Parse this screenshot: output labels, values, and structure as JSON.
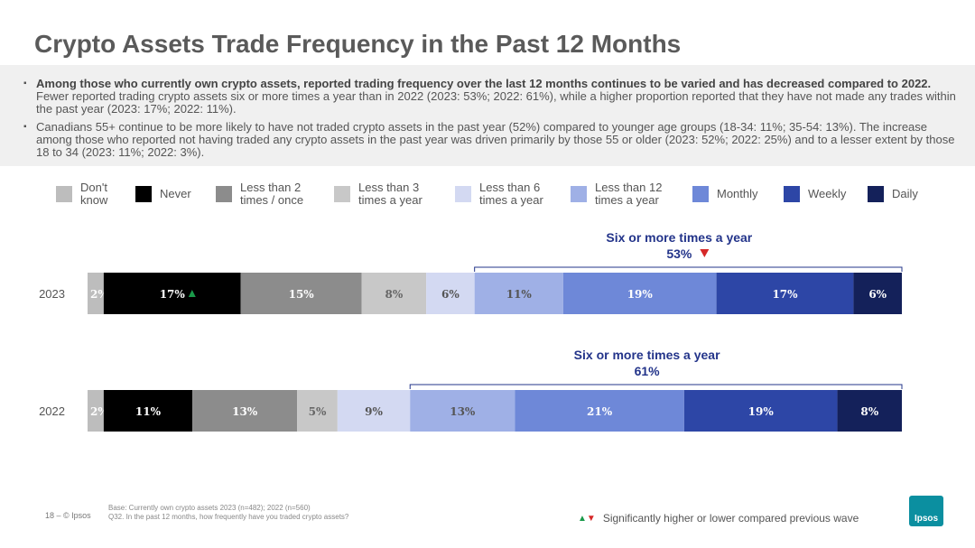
{
  "title": "Crypto Assets Trade Frequency in the Past 12 Months",
  "summary": {
    "bullet1_bold": "Among those who currently own crypto assets, reported trading frequency over the last 12 months continues to be varied and has decreased compared to 2022.",
    "bullet1_rest": " Fewer reported trading crypto assets six or more times a year than in 2022 (2023: 53%; 2022: 61%), while a higher proportion reported that they have not made any trades within the past year (2023: 17%; 2022: 11%).",
    "bullet2": "Canadians 55+ continue to be more likely to have not traded crypto assets in the past year (52%) compared to younger age groups (18-34: 11%; 35-54: 13%). The increase among those who reported not having traded any crypto assets in the past year was driven primarily by those 55 or older (2023: 52%; 2022: 25%) and to a lesser extent by those 18 to 34 (2023: 11%; 2022: 3%)."
  },
  "chart_data": {
    "type": "bar",
    "orientation": "horizontal",
    "stacked": true,
    "categories": [
      "2023",
      "2022"
    ],
    "series": [
      {
        "name": "Don't know",
        "color": "#bdbdbd",
        "values": [
          2,
          2
        ],
        "labels": [
          "2%",
          "2%"
        ]
      },
      {
        "name": "Never",
        "color": "#000000",
        "values": [
          17,
          11
        ],
        "labels": [
          "17%",
          "11%"
        ]
      },
      {
        "name": "Less than 2 times / once",
        "color": "#8c8c8c",
        "values": [
          15,
          13
        ],
        "labels": [
          "15%",
          "13%"
        ]
      },
      {
        "name": "Less than 3 times a year",
        "color": "#c8c8c8",
        "values": [
          8,
          5
        ],
        "labels": [
          "8%",
          "5%"
        ]
      },
      {
        "name": "Less than 6 times a year",
        "color": "#d3d9f2",
        "values": [
          6,
          9
        ],
        "labels": [
          "6%",
          "9%"
        ]
      },
      {
        "name": "Less than 12 times a year",
        "color": "#9fb0e6",
        "values": [
          11,
          13
        ],
        "labels": [
          "11%",
          "13%"
        ]
      },
      {
        "name": "Monthly",
        "color": "#6e88d8",
        "values": [
          19,
          21
        ],
        "labels": [
          "19%",
          "21%"
        ]
      },
      {
        "name": "Weekly",
        "color": "#2d46a6",
        "values": [
          17,
          19
        ],
        "labels": [
          "17%",
          "19%"
        ]
      },
      {
        "name": "Daily",
        "color": "#14215a",
        "values": [
          6,
          8
        ],
        "labels": [
          "6%",
          "8%"
        ]
      }
    ],
    "label_colors": [
      "#ffffff",
      "#ffffff",
      "#ffffff",
      "#666666",
      "#555555",
      "#555555",
      "#ffffff",
      "#ffffff",
      "#ffffff"
    ],
    "significance": [
      {
        "category": "2023",
        "series": "Never",
        "direction": "up",
        "color": "#1a9a4a"
      }
    ],
    "brackets": [
      {
        "category": "2023",
        "line1": "Six or more times a year",
        "line2": "53%",
        "marker": "down",
        "marker_color": "#d62828"
      },
      {
        "category": "2022",
        "line1": "Six or more times a year",
        "line2": "61%",
        "marker": "",
        "marker_color": ""
      }
    ],
    "bracket_color": "#23348a",
    "legend_position": "top"
  },
  "legend_labels": [
    [
      "Don't",
      "know"
    ],
    [
      "Never"
    ],
    [
      "Less than 2",
      "times / once"
    ],
    [
      "Less than 3",
      "times a year"
    ],
    [
      "Less than 6",
      "times a year"
    ],
    [
      "Less than 12",
      "times a year"
    ],
    [
      "Monthly"
    ],
    [
      "Weekly"
    ],
    [
      "Daily"
    ]
  ],
  "footer": {
    "page": "18 –  © Ipsos",
    "base": "Base: Currently own crypto assets 2023 (n=482); 2022 (n=560)",
    "question": "Q32. In the past 12 months, how frequently have you traded crypto assets?",
    "sig_up": "▲",
    "sig_down": "▼",
    "sig_text": "Significantly higher or lower compared previous wave",
    "logo": "Ipsos"
  }
}
